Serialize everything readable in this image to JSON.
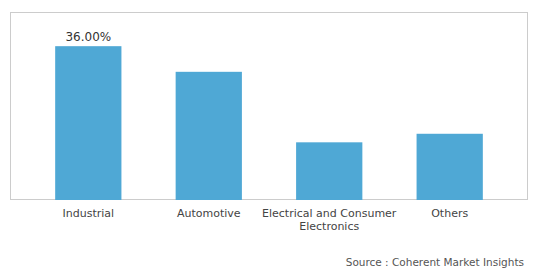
{
  "chart_data": {
    "type": "bar",
    "categories": [
      "Industrial",
      "Automotive",
      "Electrical and Consumer\nElectronics",
      "Others"
    ],
    "values": [
      36.0,
      30.0,
      13.5,
      15.5
    ],
    "color": "#4FA8D5",
    "ylim": [
      0,
      44
    ],
    "grid": false,
    "tick_labels": "x",
    "annotations": [
      {
        "text": "36.00%",
        "category": "Industrial"
      }
    ],
    "source": "Source : Coherent Market Insights"
  }
}
